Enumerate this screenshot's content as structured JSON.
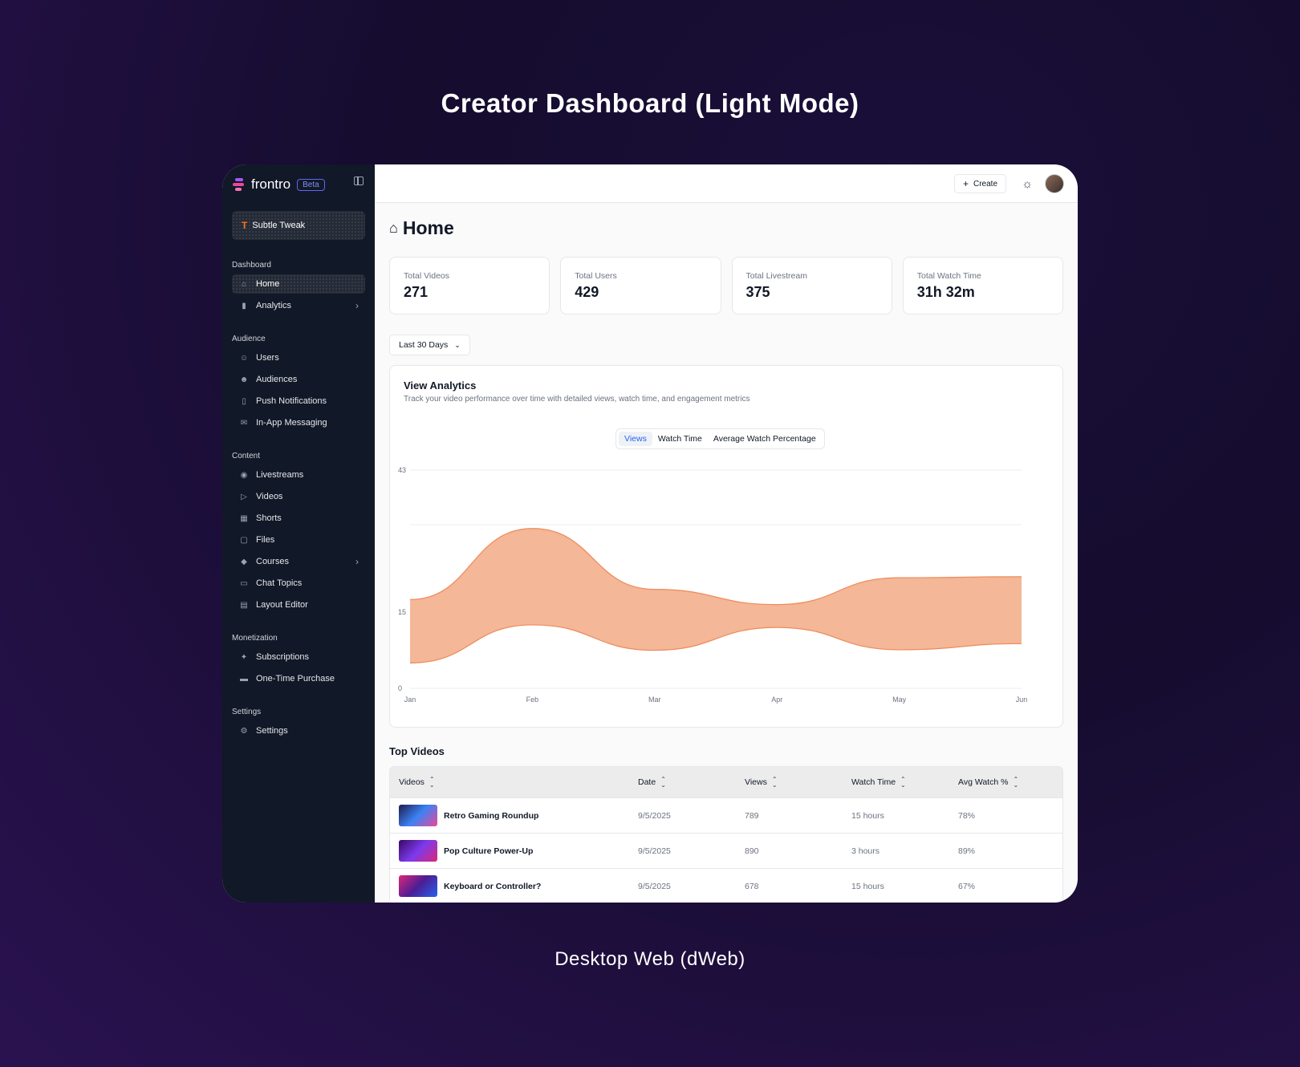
{
  "showcase": {
    "title": "Creator Dashboard (Light Mode)",
    "caption": "Desktop Web (dWeb)"
  },
  "sidebar": {
    "brand": "frontro",
    "beta": "Beta",
    "workspace": "Subtle Tweak",
    "sections": [
      {
        "label": "Dashboard",
        "items": [
          {
            "label": "Home",
            "icon": "home-icon"
          },
          {
            "label": "Analytics",
            "icon": "bar-chart-icon"
          }
        ]
      },
      {
        "label": "Audience",
        "items": [
          {
            "label": "Users",
            "icon": "users-icon"
          },
          {
            "label": "Audiences",
            "icon": "user-check-icon"
          },
          {
            "label": "Push Notifications",
            "icon": "phone-icon"
          },
          {
            "label": "In-App Messaging",
            "icon": "messages-icon"
          }
        ]
      },
      {
        "label": "Content",
        "items": [
          {
            "label": "Livestreams",
            "icon": "broadcast-icon"
          },
          {
            "label": "Videos",
            "icon": "play-icon"
          },
          {
            "label": "Shorts",
            "icon": "film-icon"
          },
          {
            "label": "Files",
            "icon": "file-icon"
          },
          {
            "label": "Courses",
            "icon": "graduation-cap-icon"
          },
          {
            "label": "Chat Topics",
            "icon": "chat-icon"
          },
          {
            "label": "Layout Editor",
            "icon": "layout-icon"
          }
        ]
      },
      {
        "label": "Monetization",
        "items": [
          {
            "label": "Subscriptions",
            "icon": "subscriptions-icon"
          },
          {
            "label": "One-Time Purchase",
            "icon": "credit-card-icon"
          }
        ]
      },
      {
        "label": "Settings",
        "items": [
          {
            "label": "Settings",
            "icon": "gear-icon"
          }
        ]
      }
    ]
  },
  "topbar": {
    "create_label": "Create"
  },
  "page": {
    "title": "Home"
  },
  "stats": [
    {
      "label": "Total Videos",
      "value": "271"
    },
    {
      "label": "Total Users",
      "value": "429"
    },
    {
      "label": "Total Livestream",
      "value": "375"
    },
    {
      "label": "Total Watch Time",
      "value": "31h 32m"
    }
  ],
  "range": {
    "label": "Last 30 Days"
  },
  "analytics": {
    "title": "View Analytics",
    "subtitle": "Track your video performance over time with detailed views, watch time, and engagement metrics",
    "tabs": [
      "Views",
      "Watch Time",
      "Average Watch Percentage"
    ],
    "selected_tab": "Views"
  },
  "chart_data": {
    "type": "area",
    "x": [
      "Jan",
      "Feb",
      "Mar",
      "Apr",
      "May",
      "Jun"
    ],
    "yticks": [
      "43",
      "15",
      "0"
    ],
    "ylim": [
      0,
      43
    ],
    "series": [
      {
        "values": [
          17.5,
          31.5,
          19.5,
          16.5,
          21.8,
          22.0
        ]
      },
      {
        "values": [
          5.0,
          12.5,
          7.5,
          12.0,
          7.6,
          8.8
        ]
      }
    ],
    "color": "#f4b797",
    "stroke": "#ee8a5a",
    "grid": true
  },
  "top_videos": {
    "title": "Top Videos",
    "columns": [
      "Videos",
      "Date",
      "Views",
      "Watch Time",
      "Avg Watch %"
    ],
    "rows": [
      {
        "title": "Retro Gaming Roundup",
        "date": "9/5/2025",
        "views": "789",
        "watch_time": "15 hours",
        "avg": "78%",
        "thumb": "#2b3a8f"
      },
      {
        "title": "Pop Culture Power-Up",
        "date": "9/5/2025",
        "views": "890",
        "watch_time": "3 hours",
        "avg": "89%",
        "thumb": "#5b2a9e"
      },
      {
        "title": "Keyboard or Controller?",
        "date": "9/5/2025",
        "views": "678",
        "watch_time": "15 hours",
        "avg": "67%",
        "thumb": "#c23aa0"
      }
    ]
  }
}
